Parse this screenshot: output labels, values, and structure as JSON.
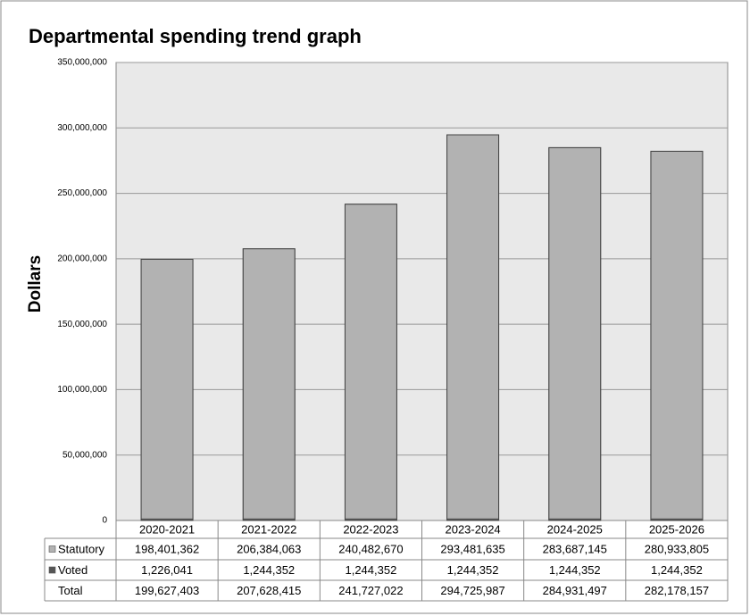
{
  "chart_data": {
    "type": "stacked-bar",
    "title": "Departmental spending trend graph",
    "y_label": "Dollars",
    "categories": [
      "2020-2021",
      "2021-2022",
      "2022-2023",
      "2023-2024",
      "2024-2025",
      "2025-2026"
    ],
    "series": [
      {
        "name": "Statutory",
        "color": "#b2b2b2",
        "values": [
          198401362,
          206384063,
          240482670,
          293481635,
          283687145,
          280933805
        ],
        "value_labels": [
          "198,401,362",
          "206,384,063",
          "240,482,670",
          "293,481,635",
          "283,687,145",
          "280,933,805"
        ]
      },
      {
        "name": "Voted",
        "color": "#555555",
        "values": [
          1226041,
          1244352,
          1244352,
          1244352,
          1244352,
          1244352
        ],
        "value_labels": [
          "1,226,041",
          "1,244,352",
          "1,244,352",
          "1,244,352",
          "1,244,352",
          "1,244,352"
        ]
      }
    ],
    "totals": {
      "name": "Total",
      "values": [
        199627403,
        207628415,
        241727022,
        294725987,
        284931497,
        282178157
      ],
      "value_labels": [
        "199,627,403",
        "207,628,415",
        "241,727,022",
        "294,725,987",
        "284,931,497",
        "282,178,157"
      ]
    },
    "ylim": [
      0,
      350000000
    ],
    "yticks": [
      0,
      {
        "value": 50000000,
        "label": "50,000,000"
      },
      {
        "value": 100000000,
        "label": "100,000,000"
      },
      {
        "value": 150000000,
        "label": "150,000,000"
      },
      {
        "value": 200000000,
        "label": "200,000,000"
      },
      {
        "value": 250000000,
        "label": "250,000,000"
      },
      {
        "value": 300000000,
        "label": "300,000,000"
      },
      {
        "value": 350000000,
        "label": "350,000,000"
      }
    ],
    "grid": true,
    "legend": "table"
  }
}
